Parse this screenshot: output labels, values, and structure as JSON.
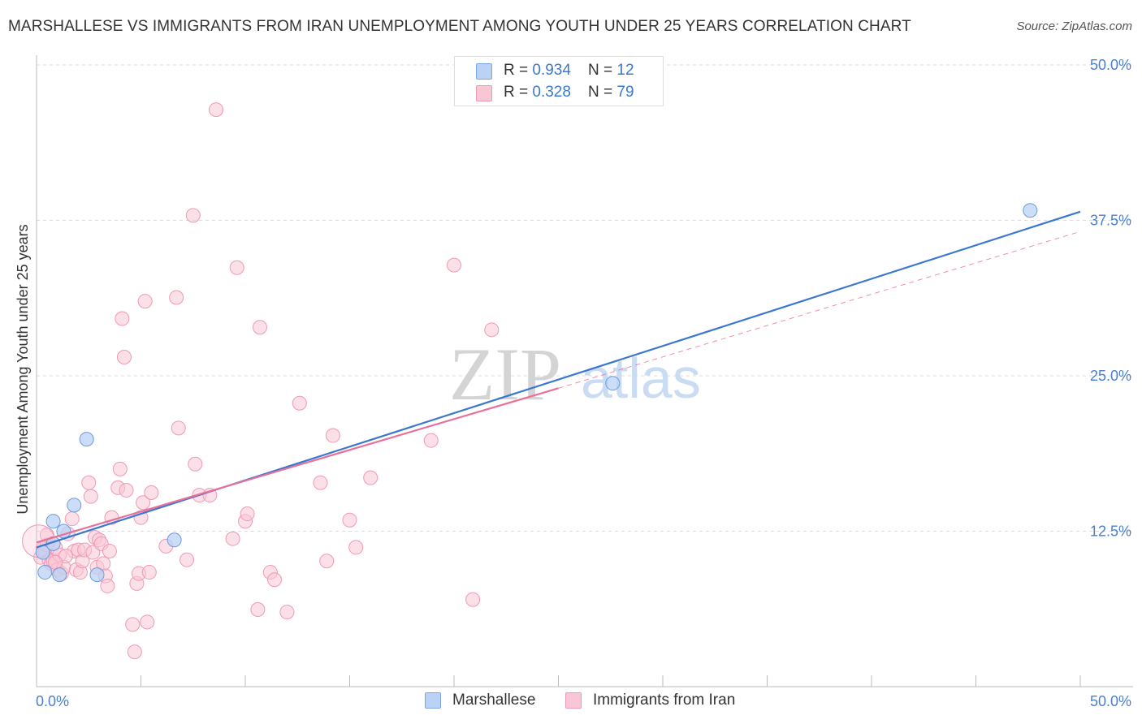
{
  "title": "MARSHALLESE VS IMMIGRANTS FROM IRAN UNEMPLOYMENT AMONG YOUTH UNDER 25 YEARS CORRELATION CHART",
  "source": "Source: ZipAtlas.com",
  "watermark": {
    "zip": "ZIP",
    "atlas": "atlas"
  },
  "colors": {
    "blue": "#3a78d0",
    "pink": "#e8709a",
    "blue_fill": "#b9d2f6",
    "pink_fill": "#f9c6d6"
  },
  "legend": {
    "rows": [
      {
        "r_label": "R = ",
        "r_value": "0.934",
        "n_label": "N = ",
        "n_value": "12"
      },
      {
        "r_label": "R = ",
        "r_value": "0.328",
        "n_label": "N = ",
        "n_value": "79"
      }
    ]
  },
  "bottom_legend": [
    "Marshallese",
    "Immigrants from Iran"
  ],
  "chart_data": {
    "type": "scatter",
    "title": "MARSHALLESE VS IMMIGRANTS FROM IRAN UNEMPLOYMENT AMONG YOUTH UNDER 25 YEARS CORRELATION CHART",
    "xlabel": "",
    "ylabel": "Unemployment Among Youth under 25 years",
    "xlim": [
      0,
      50
    ],
    "ylim": [
      0,
      50
    ],
    "x_tick_labels": [
      "0.0%",
      "50.0%"
    ],
    "y_ticks": [
      12.5,
      25.0,
      37.5,
      50.0
    ],
    "y_tick_labels": [
      "12.5%",
      "25.0%",
      "37.5%",
      "50.0%"
    ],
    "grid": true,
    "legend_position": "top-center",
    "series": [
      {
        "name": "Marshallese",
        "color": "#3a78d0",
        "r": 0.934,
        "n": 12,
        "points": [
          [
            0.3,
            10.8
          ],
          [
            0.4,
            9.2
          ],
          [
            0.8,
            13.3
          ],
          [
            0.8,
            11.5
          ],
          [
            1.1,
            9.0
          ],
          [
            1.3,
            12.5
          ],
          [
            1.8,
            14.6
          ],
          [
            2.4,
            19.9
          ],
          [
            2.9,
            9.0
          ],
          [
            6.6,
            11.8
          ],
          [
            27.6,
            24.4
          ],
          [
            47.6,
            38.3
          ]
        ],
        "trend": {
          "x0": 0,
          "y0": 11.2,
          "x1": 50,
          "y1": 38.2
        }
      },
      {
        "name": "Immigrants from Iran",
        "color": "#e8709a",
        "r": 0.328,
        "n": 79,
        "points": [
          [
            0.2,
            10.4
          ],
          [
            0.3,
            11.1
          ],
          [
            0.4,
            10.8
          ],
          [
            0.5,
            11.4
          ],
          [
            0.6,
            10.2
          ],
          [
            0.7,
            9.9
          ],
          [
            0.8,
            10.1
          ],
          [
            0.9,
            11.2
          ],
          [
            1.0,
            9.4
          ],
          [
            1.1,
            10.6
          ],
          [
            1.2,
            9.1
          ],
          [
            1.3,
            9.6
          ],
          [
            1.5,
            12.3
          ],
          [
            1.7,
            13.5
          ],
          [
            1.8,
            10.9
          ],
          [
            1.9,
            9.4
          ],
          [
            2.0,
            11.0
          ],
          [
            2.1,
            9.2
          ],
          [
            2.2,
            10.1
          ],
          [
            2.3,
            11.0
          ],
          [
            2.5,
            16.4
          ],
          [
            2.6,
            15.3
          ],
          [
            2.7,
            10.8
          ],
          [
            2.8,
            12.0
          ],
          [
            2.9,
            9.6
          ],
          [
            3.0,
            11.8
          ],
          [
            3.1,
            11.5
          ],
          [
            3.2,
            9.9
          ],
          [
            3.3,
            8.9
          ],
          [
            3.4,
            8.1
          ],
          [
            3.5,
            10.9
          ],
          [
            3.6,
            13.6
          ],
          [
            3.9,
            16.0
          ],
          [
            4.0,
            17.5
          ],
          [
            4.1,
            29.6
          ],
          [
            4.2,
            26.5
          ],
          [
            4.3,
            15.8
          ],
          [
            4.6,
            5.0
          ],
          [
            4.7,
            2.8
          ],
          [
            4.8,
            8.3
          ],
          [
            4.9,
            9.1
          ],
          [
            5.0,
            13.6
          ],
          [
            5.1,
            14.8
          ],
          [
            5.2,
            31.0
          ],
          [
            5.3,
            5.2
          ],
          [
            5.4,
            9.2
          ],
          [
            5.5,
            15.6
          ],
          [
            6.2,
            11.3
          ],
          [
            6.7,
            31.3
          ],
          [
            6.8,
            20.8
          ],
          [
            7.2,
            10.2
          ],
          [
            7.5,
            37.9
          ],
          [
            7.6,
            17.9
          ],
          [
            7.8,
            15.4
          ],
          [
            8.3,
            15.4
          ],
          [
            8.6,
            46.4
          ],
          [
            9.4,
            11.9
          ],
          [
            9.6,
            33.7
          ],
          [
            10.0,
            13.3
          ],
          [
            10.1,
            13.9
          ],
          [
            10.6,
            6.2
          ],
          [
            10.7,
            28.9
          ],
          [
            11.2,
            9.2
          ],
          [
            11.4,
            8.6
          ],
          [
            12.0,
            6.0
          ],
          [
            12.6,
            22.8
          ],
          [
            13.6,
            16.4
          ],
          [
            13.9,
            10.1
          ],
          [
            14.2,
            20.2
          ],
          [
            15.0,
            13.4
          ],
          [
            15.3,
            11.2
          ],
          [
            16.0,
            16.8
          ],
          [
            18.9,
            19.8
          ],
          [
            20.0,
            33.9
          ],
          [
            20.9,
            7.0
          ],
          [
            21.8,
            28.7
          ],
          [
            0.5,
            12.2
          ],
          [
            1.4,
            10.5
          ],
          [
            0.9,
            10.0
          ]
        ],
        "trend": {
          "x0": 0,
          "y0": 11.6,
          "x1": 25,
          "y1": 24.0
        },
        "trend_extension": {
          "x0": 25,
          "y0": 24.0,
          "x1": 50,
          "y1": 36.6
        }
      }
    ]
  }
}
